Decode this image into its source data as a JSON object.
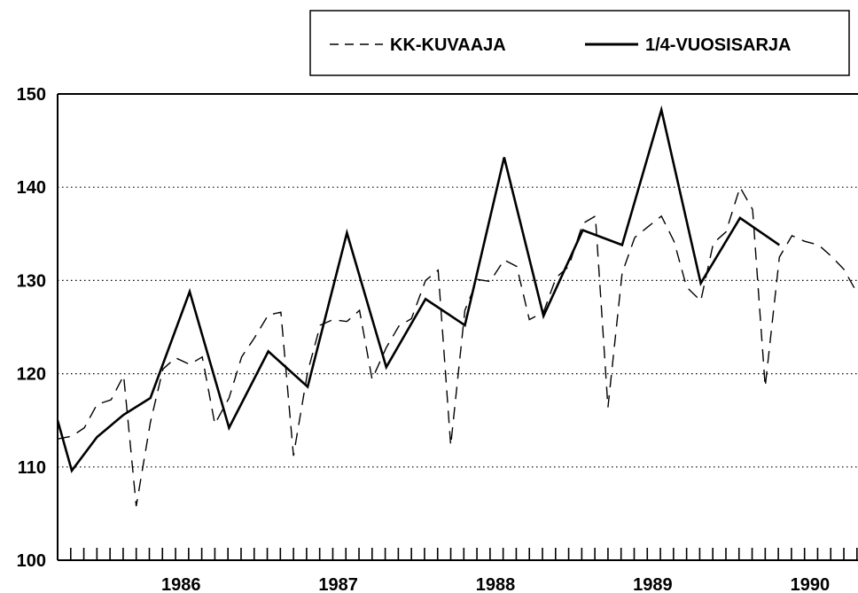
{
  "chart_data": {
    "type": "line",
    "ylim": [
      100,
      150
    ],
    "yticks": [
      "100",
      "110",
      "120",
      "130",
      "140",
      "150"
    ],
    "xrange": [
      1985.58,
      1990.67
    ],
    "year_labels": [
      "1986",
      "1987",
      "1988",
      "1989",
      "1990"
    ],
    "grid": true,
    "legend_position": "top-right",
    "series": [
      {
        "name": "KK-KUVAAJA",
        "style": "dashed",
        "color": "#000000",
        "x": [
          1985.58,
          1985.67,
          1985.75,
          1985.83,
          1985.92,
          1986.0,
          1986.08,
          1986.17,
          1986.25,
          1986.33,
          1986.42,
          1986.5,
          1986.58,
          1986.67,
          1986.75,
          1986.83,
          1986.92,
          1987.0,
          1987.08,
          1987.17,
          1987.25,
          1987.33,
          1987.42,
          1987.5,
          1987.58,
          1987.67,
          1987.75,
          1987.83,
          1987.92,
          1988.0,
          1988.08,
          1988.17,
          1988.25,
          1988.33,
          1988.42,
          1988.5,
          1988.58,
          1988.67,
          1988.75,
          1988.83,
          1988.92,
          1989.0,
          1989.08,
          1989.17,
          1989.25,
          1989.33,
          1989.42,
          1989.5,
          1989.58,
          1989.67,
          1989.75,
          1989.83,
          1989.92,
          1990.0,
          1990.08,
          1990.17,
          1990.25,
          1990.33,
          1990.42,
          1990.5,
          1990.58,
          1990.67
        ],
        "y": [
          113,
          113.3,
          114.2,
          116.7,
          117.2,
          119.8,
          105.8,
          114.8,
          120.5,
          121.7,
          121,
          121.8,
          114.6,
          117.4,
          121.8,
          123.8,
          126.3,
          126.6,
          111.2,
          120.2,
          125.2,
          125.8,
          125.6,
          126.8,
          119.4,
          122.8,
          125.1,
          125.9,
          130,
          131.1,
          112.3,
          126.8,
          130.1,
          129.9,
          132.2,
          131.5,
          125.8,
          126.6,
          130.3,
          131.5,
          136.1,
          136.9,
          116.4,
          130.8,
          134.6,
          135.7,
          136.9,
          134.2,
          129.3,
          127.8,
          134,
          135.2,
          140,
          137.6,
          118.6,
          132.5,
          134.8,
          134.2,
          133.8,
          132.6,
          131.2,
          128.5
        ]
      },
      {
        "name": "1/4-VUOSISARJA",
        "style": "solid",
        "color": "#000000",
        "x": [
          1985.58,
          1985.67,
          1985.83,
          1986.0,
          1986.17,
          1986.42,
          1986.67,
          1986.92,
          1987.17,
          1987.42,
          1987.67,
          1987.92,
          1988.17,
          1988.42,
          1988.67,
          1988.92,
          1989.17,
          1989.42,
          1989.67,
          1989.92,
          1990.17
        ],
        "y": [
          115,
          109.6,
          113.2,
          115.6,
          117.4,
          128.8,
          114.2,
          122.4,
          118.6,
          135.1,
          120.7,
          128,
          125.2,
          143.2,
          126.2,
          135.4,
          133.8,
          148.3,
          129.7,
          136.7,
          133.8
        ]
      }
    ]
  }
}
